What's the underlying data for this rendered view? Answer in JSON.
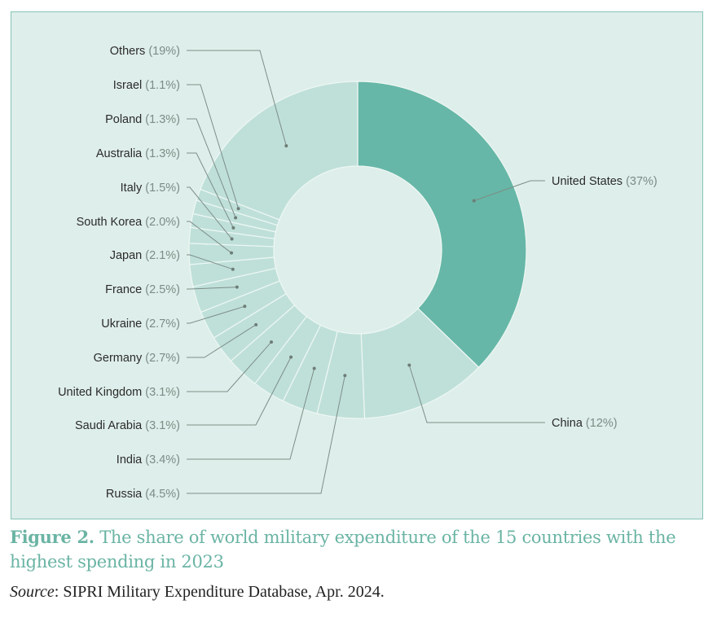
{
  "chart_data": {
    "type": "pie",
    "subtype": "donut",
    "title": "The share of world military expenditure of the 15 countries with the highest spending in 2023",
    "unit": "%",
    "slices": [
      {
        "label": "United States",
        "value": 37,
        "display": "(37%)",
        "color": "#66b7a7"
      },
      {
        "label": "China",
        "value": 12,
        "display": "(12%)",
        "color": "#bfe0d9"
      },
      {
        "label": "Russia",
        "value": 4.5,
        "display": "(4.5%)",
        "color": "#bfe0d9"
      },
      {
        "label": "India",
        "value": 3.4,
        "display": "(3.4%)",
        "color": "#bfe0d9"
      },
      {
        "label": "Saudi Arabia",
        "value": 3.1,
        "display": "(3.1%)",
        "color": "#bfe0d9"
      },
      {
        "label": "United Kingdom",
        "value": 3.1,
        "display": "(3.1%)",
        "color": "#bfe0d9"
      },
      {
        "label": "Germany",
        "value": 2.7,
        "display": "(2.7%)",
        "color": "#bfe0d9"
      },
      {
        "label": "Ukraine",
        "value": 2.7,
        "display": "(2.7%)",
        "color": "#bfe0d9"
      },
      {
        "label": "France",
        "value": 2.5,
        "display": "(2.5%)",
        "color": "#bfe0d9"
      },
      {
        "label": "Japan",
        "value": 2.1,
        "display": "(2.1%)",
        "color": "#bfe0d9"
      },
      {
        "label": "South Korea",
        "value": 2.0,
        "display": "(2.0%)",
        "color": "#bfe0d9"
      },
      {
        "label": "Italy",
        "value": 1.5,
        "display": "(1.5%)",
        "color": "#bfe0d9"
      },
      {
        "label": "Australia",
        "value": 1.3,
        "display": "(1.3%)",
        "color": "#bfe0d9"
      },
      {
        "label": "Poland",
        "value": 1.3,
        "display": "(1.3%)",
        "color": "#bfe0d9"
      },
      {
        "label": "Israel",
        "value": 1.1,
        "display": "(1.1%)",
        "color": "#bfe0d9"
      },
      {
        "label": "Others",
        "value": 19,
        "display": "(19%)",
        "color": "#bfe0d9"
      }
    ]
  },
  "caption": {
    "figure_label": "Figure 2.",
    "text": "The share of world military expenditure of the 15 countries with the highest spending in 2023"
  },
  "source": {
    "label": "Source",
    "text": ": SIPRI Military Expenditure Database, Apr. 2024."
  }
}
